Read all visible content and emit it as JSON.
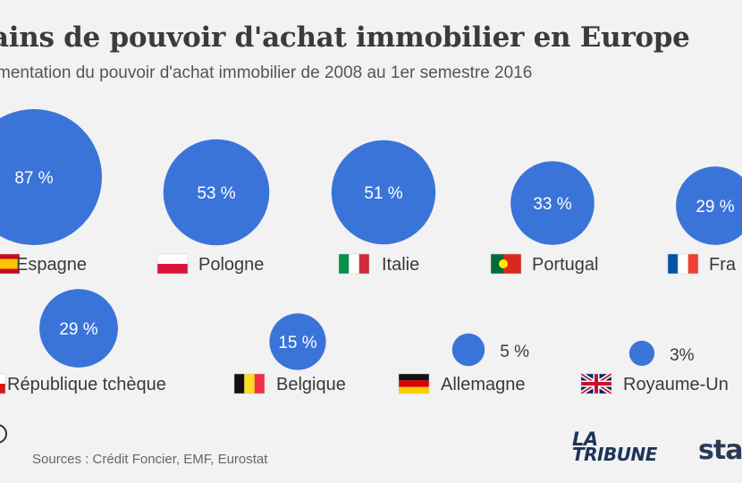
{
  "header": {
    "title": "ains de pouvoir d'achat immobilier en Europe",
    "subtitle": "mentation du pouvoir d'achat immobilier de 2008 au 1er semestre 2016"
  },
  "footer": {
    "source": "Sources : Crédit Foncier, EMF, Eurostat",
    "logo_la": "LA",
    "logo_tribune": "TRIBUNE",
    "logo_statista": "stat"
  },
  "colors": {
    "bubble": "#3b74d9",
    "bubble_text": "#ffffff"
  },
  "chart_data": {
    "type": "bubble",
    "unit": "%",
    "categories": [
      "Espagne",
      "Pologne",
      "Italie",
      "Portugal",
      "Fra",
      "République tchèque",
      "Belgique",
      "Allemagne",
      "Royaume-Un"
    ],
    "values": [
      87,
      53,
      51,
      33,
      29,
      29,
      15,
      5,
      3
    ],
    "value_labels": [
      "87 %",
      "53 %",
      "51 %",
      "33 %",
      "29 %",
      "29 %",
      "15 %",
      "5 %",
      "3%"
    ],
    "flags": [
      "flag-es",
      "flag-pl",
      "flag-it",
      "flag-pt",
      "flag-fr",
      "flag-cz",
      "flag-be",
      "flag-de",
      "flag-gb"
    ]
  }
}
